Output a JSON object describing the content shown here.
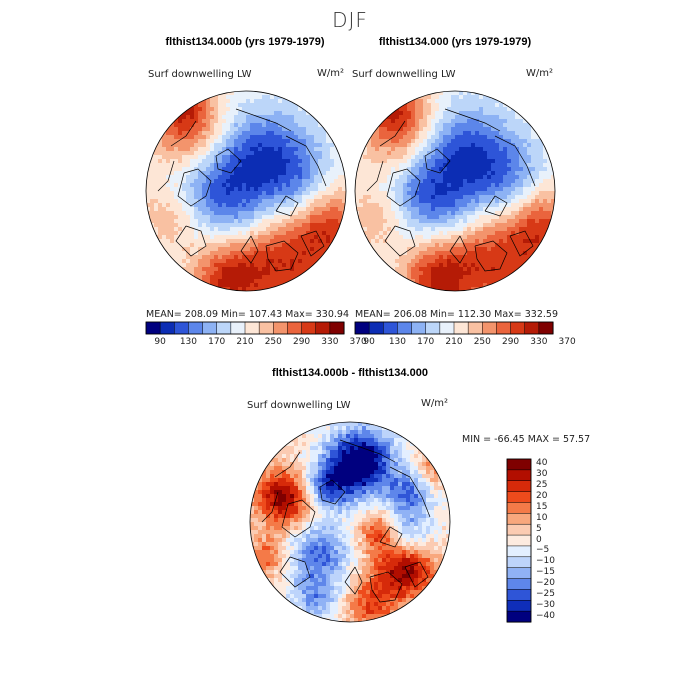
{
  "suptitle": "DJF",
  "chart_data": [
    {
      "type": "heatmap",
      "projection": "north-polar-stereographic",
      "run_title": "flthist134.000b (yrs 1979-1979)",
      "title": "Surf downwelling LW",
      "units": "W/m²",
      "stats": {
        "mean": "208.09",
        "min": "107.43",
        "max": "330.94"
      },
      "stats_text": "MEAN= 208.09   Min= 107.43   Max= 330.94",
      "colorbar": {
        "ticks": [
          90,
          130,
          170,
          210,
          250,
          290,
          330,
          370
        ]
      }
    },
    {
      "type": "heatmap",
      "projection": "north-polar-stereographic",
      "run_title": "flthist134.000 (yrs 1979-1979)",
      "title": "Surf downwelling LW",
      "units": "W/m²",
      "stats": {
        "mean": "206.08",
        "min": "112.30",
        "max": "332.59"
      },
      "stats_text": "MEAN= 206.08   Min= 112.30   Max= 332.59",
      "colorbar": {
        "ticks": [
          90,
          130,
          170,
          210,
          250,
          290,
          330,
          370
        ]
      }
    },
    {
      "type": "heatmap",
      "projection": "north-polar-stereographic",
      "run_title": "flthist134.000b - flthist134.000",
      "title": "Surf downwelling LW",
      "units": "W/m²",
      "stats": {
        "min": "-66.45",
        "max": "57.57"
      },
      "stats_text": "MIN = -66.45 MAX =  57.57",
      "colorbar": {
        "ticks": [
          "40",
          "30",
          "25",
          "20",
          "15",
          "10",
          "5",
          "0",
          "-5",
          "-10",
          "-15",
          "-20",
          "-25",
          "-30",
          "-40"
        ]
      }
    }
  ],
  "colors": {
    "abs_scale": [
      "#00007f",
      "#0c2db4",
      "#2e55d8",
      "#5c86ea",
      "#8db2f4",
      "#bcd6f9",
      "#e8f1fb",
      "#fde6d6",
      "#f9c1a2",
      "#f3946c",
      "#ea643d",
      "#d73916",
      "#b51b06",
      "#7f0000"
    ],
    "diff_scale": [
      "#7f0000",
      "#b20e00",
      "#d62a0a",
      "#ee4b1c",
      "#f47a48",
      "#f8a77d",
      "#fbcbb2",
      "#fdebe0",
      "#e3efff",
      "#bdd4fb",
      "#90b2f5",
      "#5e86ea",
      "#2f55d7",
      "#0f2eb9",
      "#00007f"
    ],
    "land_outline": "#000000"
  }
}
